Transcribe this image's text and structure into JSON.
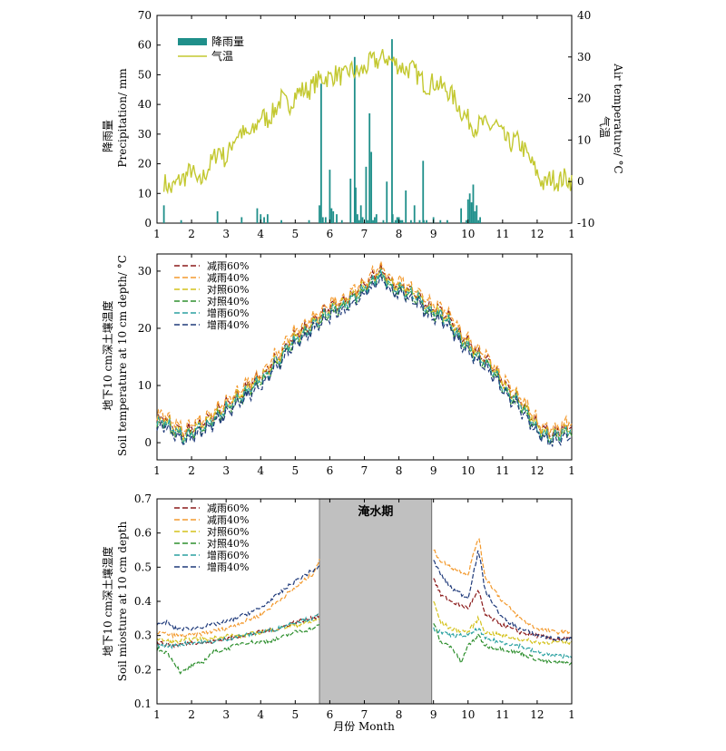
{
  "chart_data": [
    {
      "type": "bar+line",
      "panel": "top",
      "x_ticks": [
        "1",
        "2",
        "3",
        "4",
        "5",
        "6",
        "7",
        "8",
        "9",
        "10",
        "11",
        "12",
        "1"
      ],
      "xlim": [
        1,
        13
      ],
      "ylabel_left_cn": "降雨量",
      "ylabel_left_en": "Precipitation/ mm",
      "ylim_left": [
        0,
        70
      ],
      "yticks_left": [
        "0",
        "10",
        "20",
        "30",
        "40",
        "50",
        "60",
        "70"
      ],
      "ylabel_right_cn": "气温",
      "ylabel_right_en": "Air temperature/ °C",
      "ylim_right": [
        -10,
        40
      ],
      "yticks_right": [
        "-10",
        "0",
        "10",
        "20",
        "30",
        "40"
      ],
      "legend_position": "top-left",
      "colors": {
        "precip": "#1f8f8a",
        "temp": "#c3c830"
      },
      "series": [
        {
          "name": "降雨量",
          "kind": "bar",
          "x": [
            1.2,
            1.7,
            2.75,
            3.45,
            3.9,
            4.0,
            4.1,
            4.2,
            4.6,
            5.4,
            5.7,
            5.75,
            5.8,
            5.88,
            6.0,
            6.05,
            6.1,
            6.2,
            6.35,
            6.6,
            6.72,
            6.75,
            6.8,
            6.85,
            6.9,
            6.95,
            7.05,
            7.1,
            7.15,
            7.2,
            7.25,
            7.3,
            7.35,
            7.55,
            7.65,
            7.8,
            7.82,
            7.9,
            7.95,
            8.0,
            8.05,
            8.1,
            8.2,
            8.35,
            8.45,
            8.6,
            8.7,
            8.72,
            8.8,
            9.0,
            9.2,
            9.4,
            9.8,
            9.95,
            10.0,
            10.05,
            10.1,
            10.15,
            10.2,
            10.25,
            10.3,
            10.35
          ],
          "values": [
            6,
            1,
            4,
            2,
            5,
            3,
            2,
            3,
            1,
            1,
            6,
            47,
            2,
            2,
            18,
            5,
            4,
            3,
            1,
            15,
            56,
            12,
            3,
            1,
            6,
            2,
            19,
            1,
            37,
            24,
            1,
            2,
            3,
            1,
            14,
            62,
            3,
            1,
            2,
            2,
            1,
            1,
            11,
            1,
            6,
            1,
            21,
            1,
            1,
            2,
            1,
            1,
            5,
            1,
            8,
            10,
            7,
            13,
            4,
            6,
            1,
            2
          ]
        },
        {
          "name": "气温",
          "kind": "line",
          "anchors_x": [
            1.2,
            1.4,
            1.6,
            1.8,
            2.0,
            2.2,
            2.4,
            2.6,
            2.8,
            3.0,
            3.2,
            3.4,
            3.6,
            3.8,
            4.0,
            4.2,
            4.4,
            4.6,
            4.8,
            5.0,
            5.2,
            5.4,
            5.6,
            5.8,
            6.0,
            6.2,
            6.4,
            6.6,
            6.8,
            7.0,
            7.2,
            7.4,
            7.6,
            7.8,
            8.0,
            8.2,
            8.4,
            8.6,
            8.8,
            9.0,
            9.2,
            9.4,
            9.6,
            9.8,
            10.0,
            10.2,
            10.4,
            10.6,
            10.8,
            11.0,
            11.2,
            11.4,
            11.6,
            11.8,
            12.0,
            12.2,
            12.4,
            12.6,
            12.8,
            13.0
          ],
          "anchors_y": [
            0,
            -2,
            0,
            1,
            3,
            -1,
            2,
            5,
            8,
            5,
            10,
            12,
            11,
            12,
            16,
            15,
            17,
            20,
            18,
            21,
            22,
            22,
            24,
            25,
            25,
            26,
            25,
            27,
            26,
            27,
            29,
            29,
            30,
            29,
            28,
            27,
            27,
            25,
            23,
            24,
            23,
            22,
            20,
            17,
            15,
            13,
            14,
            13,
            14,
            11,
            9,
            10,
            8,
            5,
            2,
            -1,
            1,
            0,
            1,
            0
          ]
        }
      ]
    },
    {
      "type": "line",
      "panel": "middle",
      "x_ticks": [
        "1",
        "2",
        "3",
        "4",
        "5",
        "6",
        "7",
        "8",
        "9",
        "10",
        "11",
        "12",
        "1"
      ],
      "xlim": [
        1,
        13
      ],
      "ylabel_cn": "地下10 cm深土壤温度",
      "ylabel_en": "Soil temperature at 10 cm depth/ °C",
      "ylim": [
        -3,
        33
      ],
      "yticks": [
        "0",
        "10",
        "20",
        "30"
      ],
      "legend_position": "top-left",
      "anchors_x": [
        1.0,
        1.2,
        1.4,
        1.6,
        1.8,
        2.0,
        2.2,
        2.4,
        2.6,
        2.8,
        3.0,
        3.2,
        3.4,
        3.6,
        3.8,
        4.0,
        4.2,
        4.4,
        4.6,
        4.8,
        5.0,
        5.2,
        5.4,
        5.6,
        5.8,
        6.0,
        6.2,
        6.4,
        6.6,
        6.8,
        7.0,
        7.2,
        7.4,
        7.6,
        7.8,
        8.0,
        8.2,
        8.4,
        8.6,
        8.8,
        9.0,
        9.2,
        9.4,
        9.6,
        9.8,
        10.0,
        10.2,
        10.4,
        10.6,
        10.8,
        11.0,
        11.2,
        11.4,
        11.6,
        11.8,
        12.0,
        12.2,
        12.4,
        12.6,
        12.8,
        13.0
      ],
      "anchors_y": [
        3,
        4,
        2.5,
        2,
        1,
        2,
        2.5,
        3,
        4,
        5,
        6,
        7,
        8,
        9,
        10,
        11,
        12,
        14,
        15,
        17,
        18,
        19,
        20,
        21,
        22,
        23,
        23.5,
        24,
        25,
        26,
        27,
        28,
        29.5,
        29,
        27,
        27,
        26.5,
        26,
        25,
        23.5,
        23,
        22.5,
        21.5,
        20,
        18,
        17,
        15.5,
        14.5,
        13.5,
        12,
        10,
        8.5,
        7.5,
        6,
        4.5,
        2.5,
        1.5,
        1,
        1.5,
        2,
        2.5
      ],
      "series": [
        {
          "name": "减雨60%",
          "color": "#8b1a1a",
          "offset": 0.6
        },
        {
          "name": "减雨40%",
          "color": "#f39a2e",
          "offset": 1.3
        },
        {
          "name": "对照60%",
          "color": "#d4c21c",
          "offset": 0.3
        },
        {
          "name": "对照40%",
          "color": "#2e8f2e",
          "offset": -0.4
        },
        {
          "name": "增雨60%",
          "color": "#2aa1a1",
          "offset": -0.1
        },
        {
          "name": "增雨40%",
          "color": "#1f3a7a",
          "offset": -0.9
        }
      ]
    },
    {
      "type": "line",
      "panel": "bottom",
      "x_ticks": [
        "1",
        "2",
        "3",
        "4",
        "5",
        "6",
        "7",
        "8",
        "9",
        "10",
        "11",
        "12",
        "1"
      ],
      "xlim": [
        1,
        13
      ],
      "xlabel": "月份 Month",
      "ylabel_cn": "地下10 cm深土壤湿度",
      "ylabel_en": "Soil miosture at 10 cm depth",
      "ylim": [
        0.1,
        0.7
      ],
      "yticks": [
        "0.1",
        "0.2",
        "0.3",
        "0.4",
        "0.5",
        "0.6",
        "0.7"
      ],
      "legend_position": "top-left",
      "flood": {
        "label": "淹水期",
        "x_start": 5.7,
        "x_end": 8.95,
        "color": "#c0c0c0"
      },
      "series": [
        {
          "name": "减雨60%",
          "color": "#8b1a1a",
          "x": [
            1.0,
            1.5,
            2.0,
            2.5,
            3.0,
            3.5,
            4.0,
            4.5,
            5.0,
            5.5,
            5.7,
            9.0,
            9.2,
            9.5,
            10.0,
            10.3,
            10.5,
            11.0,
            11.5,
            12.0,
            12.5,
            13.0
          ],
          "y": [
            0.28,
            0.27,
            0.28,
            0.28,
            0.29,
            0.3,
            0.31,
            0.32,
            0.34,
            0.35,
            0.36,
            0.47,
            0.42,
            0.4,
            0.38,
            0.43,
            0.36,
            0.33,
            0.31,
            0.3,
            0.29,
            0.29
          ]
        },
        {
          "name": "减雨40%",
          "color": "#f39a2e",
          "x": [
            1.0,
            1.5,
            2.0,
            2.5,
            3.0,
            3.5,
            4.0,
            4.5,
            5.0,
            5.5,
            5.7,
            9.0,
            9.2,
            9.5,
            10.0,
            10.3,
            10.5,
            11.0,
            11.5,
            12.0,
            12.5,
            13.0
          ],
          "y": [
            0.31,
            0.3,
            0.3,
            0.31,
            0.32,
            0.34,
            0.36,
            0.4,
            0.44,
            0.48,
            0.52,
            0.55,
            0.52,
            0.5,
            0.48,
            0.59,
            0.47,
            0.4,
            0.35,
            0.32,
            0.31,
            0.31
          ]
        },
        {
          "name": "对照60%",
          "color": "#d4c21c",
          "x": [
            1.0,
            1.5,
            2.0,
            2.5,
            3.0,
            3.5,
            4.0,
            4.5,
            5.0,
            5.5,
            5.7,
            9.0,
            9.2,
            9.5,
            10.0,
            10.3,
            10.5,
            11.0,
            11.5,
            12.0,
            12.5,
            13.0
          ],
          "y": [
            0.29,
            0.28,
            0.29,
            0.29,
            0.3,
            0.3,
            0.31,
            0.32,
            0.33,
            0.34,
            0.35,
            0.4,
            0.34,
            0.32,
            0.31,
            0.35,
            0.31,
            0.3,
            0.29,
            0.28,
            0.28,
            0.28
          ]
        },
        {
          "name": "对照40%",
          "color": "#2e8f2e",
          "x": [
            1.0,
            1.3,
            1.7,
            2.0,
            2.3,
            2.6,
            3.0,
            3.5,
            4.0,
            4.5,
            5.0,
            5.5,
            5.7,
            9.0,
            9.2,
            9.5,
            9.8,
            10.0,
            10.3,
            10.5,
            11.0,
            11.5,
            12.0,
            12.5,
            13.0
          ],
          "y": [
            0.26,
            0.25,
            0.19,
            0.21,
            0.22,
            0.25,
            0.26,
            0.28,
            0.28,
            0.29,
            0.31,
            0.32,
            0.33,
            0.34,
            0.28,
            0.27,
            0.22,
            0.27,
            0.3,
            0.27,
            0.26,
            0.25,
            0.23,
            0.22,
            0.22
          ]
        },
        {
          "name": "增雨60%",
          "color": "#2aa1a1",
          "x": [
            1.0,
            1.5,
            2.0,
            2.5,
            3.0,
            3.5,
            4.0,
            4.5,
            5.0,
            5.5,
            5.7,
            9.0,
            9.2,
            9.5,
            10.0,
            10.3,
            10.5,
            11.0,
            11.5,
            12.0,
            12.5,
            13.0
          ],
          "y": [
            0.27,
            0.27,
            0.28,
            0.28,
            0.29,
            0.3,
            0.31,
            0.32,
            0.34,
            0.35,
            0.36,
            0.32,
            0.31,
            0.3,
            0.3,
            0.32,
            0.29,
            0.28,
            0.27,
            0.25,
            0.24,
            0.24
          ]
        },
        {
          "name": "增雨40%",
          "color": "#1f3a7a",
          "x": [
            1.0,
            1.3,
            1.5,
            2.0,
            2.5,
            3.0,
            3.5,
            4.0,
            4.5,
            5.0,
            5.5,
            5.7,
            9.0,
            9.2,
            9.5,
            10.0,
            10.3,
            10.5,
            11.0,
            11.5,
            12.0,
            12.5,
            13.0
          ],
          "y": [
            0.33,
            0.34,
            0.32,
            0.32,
            0.33,
            0.34,
            0.36,
            0.38,
            0.42,
            0.46,
            0.49,
            0.5,
            0.52,
            0.48,
            0.44,
            0.41,
            0.55,
            0.43,
            0.35,
            0.32,
            0.3,
            0.29,
            0.29
          ]
        }
      ]
    }
  ]
}
